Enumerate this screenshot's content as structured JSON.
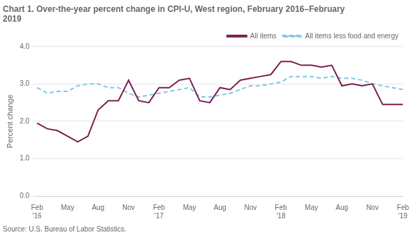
{
  "chart_data": {
    "type": "line",
    "title": "Chart 1. Over-the-year percent change in CPI-U, West region, February 2016–February\n2019",
    "ylabel": "Percent change",
    "annotations": [
      "Source: U.S. Bureau of Labor Statistics."
    ],
    "categories": [
      "Feb\n'16",
      null,
      null,
      "May",
      null,
      null,
      "Aug",
      null,
      null,
      "Nov",
      null,
      null,
      "Feb\n'17",
      null,
      null,
      "May",
      null,
      null,
      "Aug",
      null,
      null,
      "Nov",
      null,
      null,
      "Feb\n'18",
      null,
      null,
      "May",
      null,
      null,
      "Aug",
      null,
      null,
      "Nov",
      null,
      null,
      "Feb\n'19"
    ],
    "series": [
      {
        "name": "All items",
        "color": "#7B1F4E",
        "line_style": "solid",
        "values": [
          1.95,
          1.8,
          1.75,
          1.6,
          1.45,
          1.6,
          2.3,
          2.55,
          2.55,
          3.1,
          2.55,
          2.5,
          2.9,
          2.9,
          3.1,
          3.15,
          2.55,
          2.5,
          2.9,
          2.85,
          3.1,
          3.15,
          3.2,
          3.25,
          3.6,
          3.6,
          3.5,
          3.5,
          3.45,
          3.5,
          2.95,
          3.0,
          2.95,
          3.0,
          2.45,
          2.45,
          2.45
        ]
      },
      {
        "name": "All items less food and energy",
        "color": "#7EC8E3",
        "line_style": "dashed",
        "values": [
          2.9,
          2.75,
          2.8,
          2.8,
          2.95,
          3.0,
          3.0,
          2.9,
          2.9,
          2.75,
          2.65,
          2.7,
          2.75,
          2.8,
          2.85,
          2.9,
          2.65,
          2.65,
          2.7,
          2.75,
          2.85,
          2.95,
          2.95,
          3.0,
          3.05,
          3.2,
          3.2,
          3.2,
          3.15,
          3.2,
          3.15,
          3.15,
          3.1,
          3.0,
          2.95,
          2.9,
          2.85
        ]
      }
    ],
    "ylim": [
      0.0,
      4.0
    ],
    "yticks": [
      {
        "value": 0.0,
        "label": "0.0"
      },
      {
        "value": 1.0,
        "label": "1.0"
      },
      {
        "value": 2.0,
        "label": "2.0"
      },
      {
        "value": 3.0,
        "label": "3.0"
      },
      {
        "value": 4.0,
        "label": "4.0"
      }
    ],
    "grid": true,
    "legend": "upper right"
  }
}
